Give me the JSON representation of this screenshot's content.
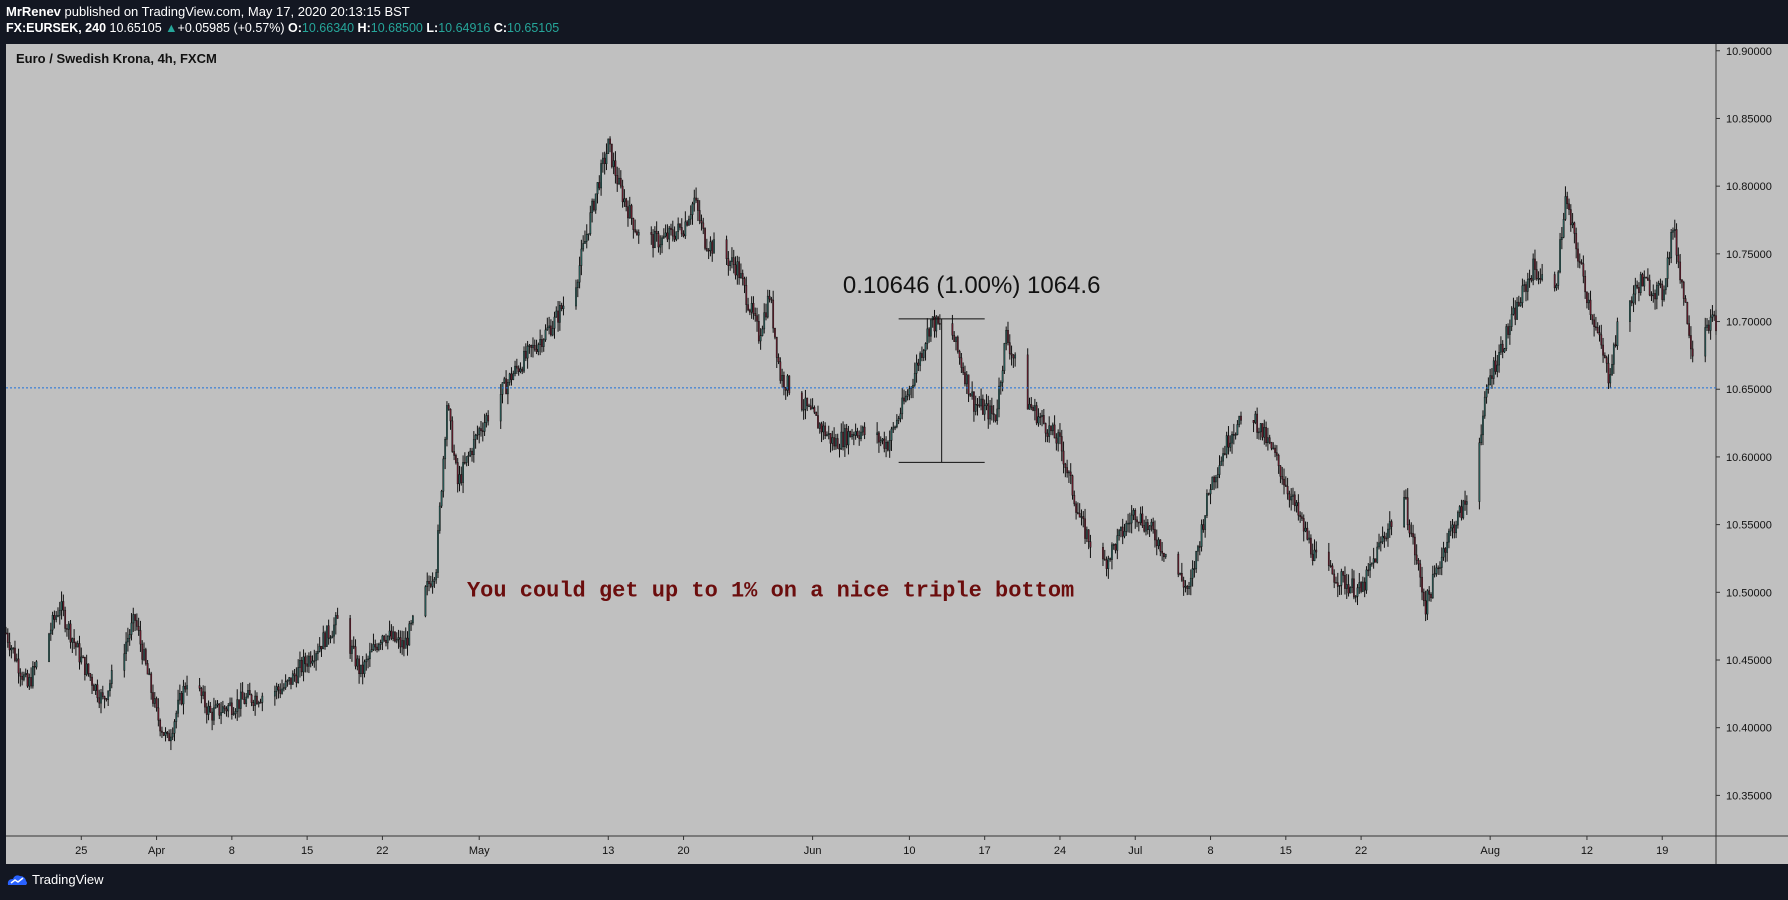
{
  "header": {
    "author": "MrRenev",
    "published_text": "published on TradingView.com, May 17, 2020 20:13:15 BST",
    "symbol": "FX:EURSEK, 240",
    "last": "10.65105",
    "change_arrow": "▲",
    "change": "+0.05985 (+0.57%)",
    "o_label": "O:",
    "o_val": "10.66340",
    "h_label": "H:",
    "h_val": "10.68500",
    "l_label": "L:",
    "l_val": "10.64916",
    "c_label": "C:",
    "c_val": "10.65105"
  },
  "footer": {
    "brand": "TradingView"
  },
  "colors": {
    "plot_bg": "#c0c0c0",
    "frame_bg": "#131722",
    "up_candle": "#2e6f6a",
    "down_candle": "#7a1e32",
    "hline": "#1e6fd9",
    "annotation_text": "#6b0d0d"
  },
  "chart_data": {
    "type": "candlestick",
    "title": "Euro / Swedish Krona, 4h, FXCM",
    "y_ticks": [
      "10.90000",
      "10.85000",
      "10.80000",
      "10.75000",
      "10.70000",
      "10.65000",
      "10.60000",
      "10.55000",
      "10.50000",
      "10.45000",
      "10.40000",
      "10.35000"
    ],
    "ylim": [
      10.32,
      10.905
    ],
    "x_ticks": [
      "25",
      "Apr",
      "8",
      "15",
      "22",
      "May",
      "13",
      "20",
      "Jun",
      "10",
      "17",
      "24",
      "Jul",
      "8",
      "15",
      "22",
      "Aug",
      "12",
      "19"
    ],
    "x_tick_dates": [
      "2020-03-25",
      "2020-04-01",
      "2020-04-08",
      "2020-04-15",
      "2020-04-22",
      "2020-05-01",
      "2020-05-13",
      "2020-05-20",
      "2020-06-01",
      "2020-06-10",
      "2020-06-17",
      "2020-06-24",
      "2020-07-01",
      "2020-07-08",
      "2020-07-15",
      "2020-07-22",
      "2020-08-03",
      "2020-08-12",
      "2020-08-19"
    ],
    "x_range": [
      "2020-03-18",
      "2020-08-24"
    ],
    "close_price_approx": [
      [
        "2020-03-18",
        10.47
      ],
      [
        "2020-03-20",
        10.43
      ],
      [
        "2020-03-23",
        10.49
      ],
      [
        "2020-03-25",
        10.45
      ],
      [
        "2020-03-27",
        10.42
      ],
      [
        "2020-03-30",
        10.48
      ],
      [
        "2020-04-01",
        10.41
      ],
      [
        "2020-04-02",
        10.39
      ],
      [
        "2020-04-04",
        10.44
      ],
      [
        "2020-04-06",
        10.41
      ],
      [
        "2020-04-09",
        10.42
      ],
      [
        "2020-04-13",
        10.43
      ],
      [
        "2020-04-16",
        10.46
      ],
      [
        "2020-04-18",
        10.48
      ],
      [
        "2020-04-20",
        10.44
      ],
      [
        "2020-04-22",
        10.47
      ],
      [
        "2020-04-24",
        10.46
      ],
      [
        "2020-04-27",
        10.52
      ],
      [
        "2020-04-28",
        10.64
      ],
      [
        "2020-04-29",
        10.58
      ],
      [
        "2020-05-01",
        10.62
      ],
      [
        "2020-05-04",
        10.66
      ],
      [
        "2020-05-06",
        10.68
      ],
      [
        "2020-05-08",
        10.7
      ],
      [
        "2020-05-10",
        10.73
      ],
      [
        "2020-05-12",
        10.8
      ],
      [
        "2020-05-13",
        10.83
      ],
      [
        "2020-05-14",
        10.8
      ],
      [
        "2020-05-16",
        10.76
      ],
      [
        "2020-05-18",
        10.76
      ],
      [
        "2020-05-20",
        10.77
      ],
      [
        "2020-05-21",
        10.79
      ],
      [
        "2020-05-22",
        10.76
      ],
      [
        "2020-05-25",
        10.74
      ],
      [
        "2020-05-27",
        10.69
      ],
      [
        "2020-05-28",
        10.72
      ],
      [
        "2020-05-29",
        10.66
      ],
      [
        "2020-06-01",
        10.63
      ],
      [
        "2020-06-03",
        10.61
      ],
      [
        "2020-06-05",
        10.62
      ],
      [
        "2020-06-08",
        10.61
      ],
      [
        "2020-06-10",
        10.65
      ],
      [
        "2020-06-12",
        10.7
      ],
      [
        "2020-06-14",
        10.69
      ],
      [
        "2020-06-16",
        10.64
      ],
      [
        "2020-06-18",
        10.63
      ],
      [
        "2020-06-19",
        10.69
      ],
      [
        "2020-06-21",
        10.64
      ],
      [
        "2020-06-24",
        10.61
      ],
      [
        "2020-06-26",
        10.55
      ],
      [
        "2020-06-28",
        10.52
      ],
      [
        "2020-07-01",
        10.56
      ],
      [
        "2020-07-03",
        10.54
      ],
      [
        "2020-07-06",
        10.5
      ],
      [
        "2020-07-08",
        10.58
      ],
      [
        "2020-07-10",
        10.62
      ],
      [
        "2020-07-12",
        10.63
      ],
      [
        "2020-07-14",
        10.6
      ],
      [
        "2020-07-16",
        10.56
      ],
      [
        "2020-07-18",
        10.52
      ],
      [
        "2020-07-20",
        10.51
      ],
      [
        "2020-07-22",
        10.5
      ],
      [
        "2020-07-24",
        10.54
      ],
      [
        "2020-07-26",
        10.57
      ],
      [
        "2020-07-28",
        10.49
      ],
      [
        "2020-07-30",
        10.54
      ],
      [
        "2020-08-01",
        10.57
      ],
      [
        "2020-08-03",
        10.66
      ],
      [
        "2020-08-05",
        10.7
      ],
      [
        "2020-08-07",
        10.74
      ],
      [
        "2020-08-09",
        10.72
      ],
      [
        "2020-08-10",
        10.79
      ],
      [
        "2020-08-12",
        10.72
      ],
      [
        "2020-08-14",
        10.66
      ],
      [
        "2020-08-15",
        10.7
      ],
      [
        "2020-08-17",
        10.73
      ],
      [
        "2020-08-19",
        10.72
      ],
      [
        "2020-08-20",
        10.77
      ],
      [
        "2020-08-22",
        10.67
      ],
      [
        "2020-08-23",
        10.7
      ]
    ],
    "current_price_line": 10.651,
    "price_range_tool": {
      "label": "0.10646 (1.00%) 1064.6",
      "from": 10.596,
      "to": 10.702,
      "date_from": "2020-06-09",
      "date_to": "2020-06-17"
    },
    "annotation": "You could get up to 1% on a nice triple bottom",
    "grid": false,
    "legend": "none"
  }
}
